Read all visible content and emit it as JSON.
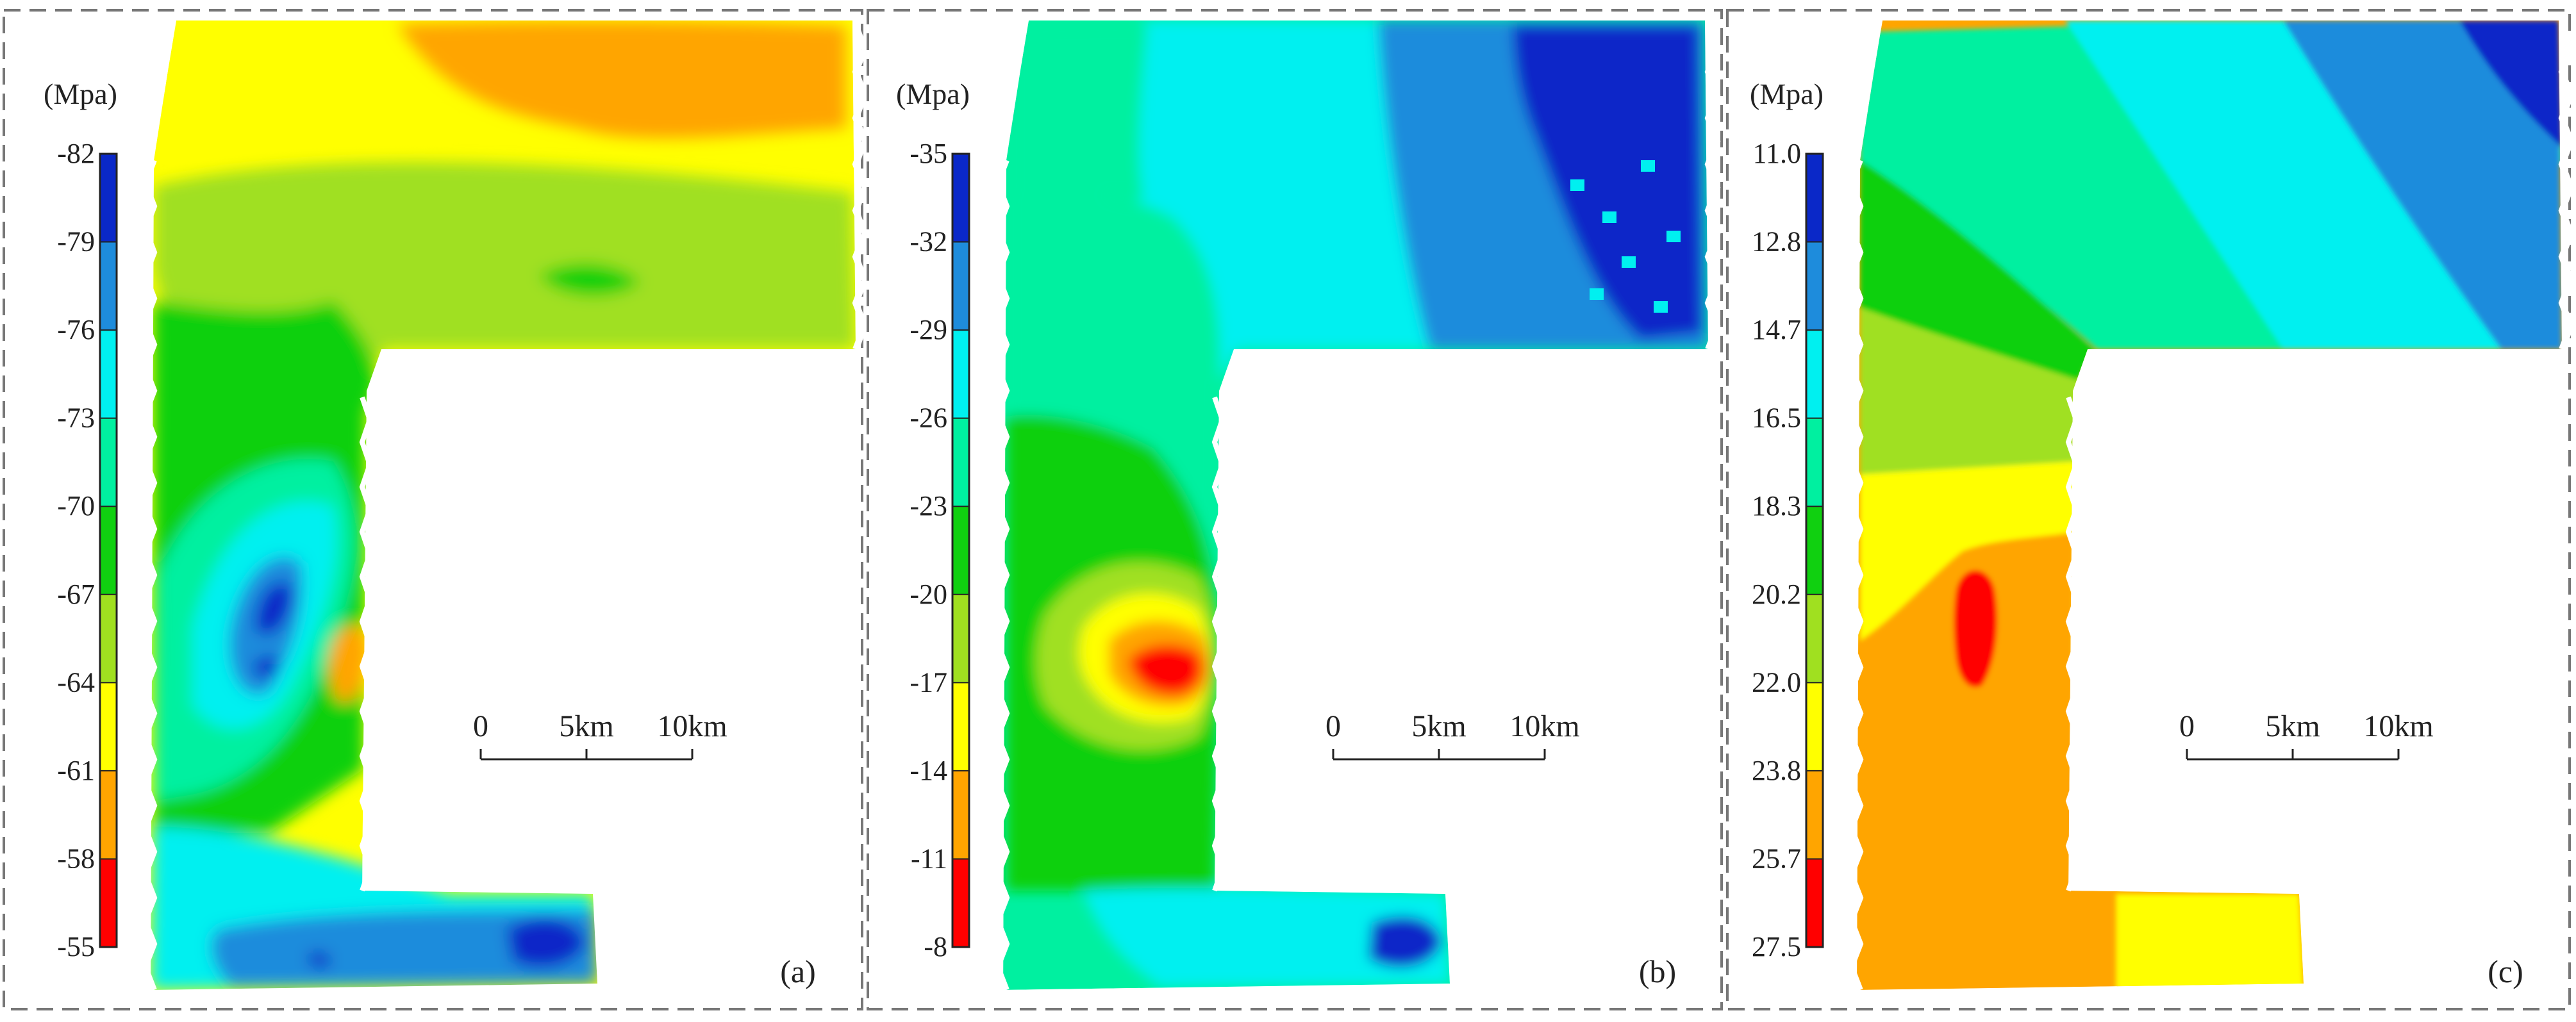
{
  "chart_data": [
    {
      "type": "heatmap",
      "panel_label": "(a)",
      "unit": "(Mpa)",
      "colorbar_ticks": [
        "-82",
        "-79",
        "-76",
        "-73",
        "-70",
        "-67",
        "-64",
        "-61",
        "-58",
        "-55"
      ],
      "colors": [
        "#0a28c8",
        "#1e8cdc",
        "#00f0f0",
        "#00f0a0",
        "#10d010",
        "#a0e020",
        "#ffff00",
        "#ffa500",
        "#ff0000"
      ],
      "scale_bar": {
        "labels": [
          "0",
          "5km",
          "10km"
        ]
      }
    },
    {
      "type": "heatmap",
      "panel_label": "(b)",
      "unit": "(Mpa)",
      "colorbar_ticks": [
        "-35",
        "-32",
        "-29",
        "-26",
        "-23",
        "-20",
        "-17",
        "-14",
        "-11",
        "-8"
      ],
      "colors": [
        "#0a28c8",
        "#1e8cdc",
        "#00f0f0",
        "#00f0a0",
        "#10d010",
        "#a0e020",
        "#ffff00",
        "#ffa500",
        "#ff0000"
      ],
      "scale_bar": {
        "labels": [
          "0",
          "5km",
          "10km"
        ]
      }
    },
    {
      "type": "heatmap",
      "panel_label": "(c)",
      "unit": "(Mpa)",
      "colorbar_ticks": [
        "11.0",
        "12.8",
        "14.7",
        "16.5",
        "18.3",
        "20.2",
        "22.0",
        "23.8",
        "25.7",
        "27.5"
      ],
      "colors": [
        "#0a28c8",
        "#1e8cdc",
        "#00f0f0",
        "#00f0a0",
        "#10d010",
        "#a0e020",
        "#ffff00",
        "#ffa500",
        "#ff0000"
      ],
      "scale_bar": {
        "labels": [
          "0",
          "5km",
          "10km"
        ]
      }
    }
  ]
}
